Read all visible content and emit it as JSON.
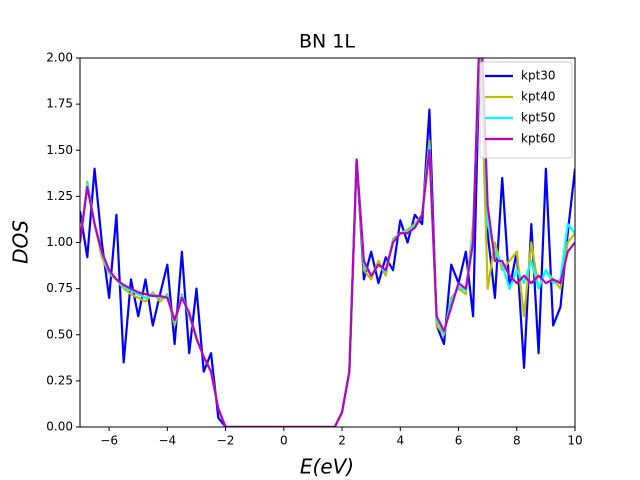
{
  "chart_data": {
    "type": "line",
    "title": "BN 1L",
    "x_label": "E(eV)",
    "y_label": "DOS",
    "x": [
      -7,
      -6.75,
      -6.5,
      -6.25,
      -6,
      -5.75,
      -5.5,
      -5.25,
      -5,
      -4.75,
      -4.5,
      -4.25,
      -4,
      -3.75,
      -3.5,
      -3.25,
      -3,
      -2.75,
      -2.5,
      -2.25,
      -2,
      -1.75,
      -1.5,
      -1.25,
      -1,
      -0.75,
      -0.5,
      -0.25,
      0,
      0.25,
      0.5,
      0.75,
      1,
      1.25,
      1.5,
      1.75,
      2,
      2.25,
      2.5,
      2.75,
      3,
      3.25,
      3.5,
      3.75,
      4,
      4.25,
      4.5,
      4.75,
      5,
      5.25,
      5.5,
      5.75,
      6,
      6.25,
      6.5,
      6.75,
      7,
      7.25,
      7.5,
      7.75,
      8,
      8.25,
      8.5,
      8.75,
      9,
      9.25,
      9.5,
      9.75,
      10
    ],
    "series": [
      {
        "name": "kpt30",
        "color": "#0000ff",
        "values": [
          1.17,
          0.92,
          1.4,
          1.0,
          0.7,
          1.15,
          0.35,
          0.8,
          0.6,
          0.8,
          0.55,
          0.72,
          0.88,
          0.45,
          0.95,
          0.4,
          0.75,
          0.3,
          0.4,
          0.05,
          0,
          0,
          0,
          0,
          0,
          0,
          0,
          0,
          0,
          0,
          0,
          0,
          0,
          0,
          0,
          0,
          0.08,
          0.3,
          1.45,
          0.8,
          0.95,
          0.78,
          0.92,
          0.85,
          1.12,
          1.0,
          1.15,
          1.1,
          1.72,
          0.55,
          0.45,
          0.88,
          0.78,
          0.95,
          0.6,
          2.2,
          1.05,
          0.7,
          1.35,
          0.75,
          0.95,
          0.32,
          1.1,
          0.4,
          1.4,
          0.55,
          0.65,
          1.05,
          1.4
        ]
      },
      {
        "name": "kpt40",
        "color": "#bfbf00",
        "values": [
          1.0,
          1.33,
          1.1,
          0.92,
          0.83,
          0.8,
          0.75,
          0.72,
          0.7,
          0.68,
          0.73,
          0.68,
          0.72,
          0.55,
          0.72,
          0.6,
          0.48,
          0.38,
          0.3,
          0.1,
          0,
          0,
          0,
          0,
          0,
          0,
          0,
          0,
          0,
          0,
          0,
          0,
          0,
          0,
          0,
          0,
          0.08,
          0.3,
          1.45,
          0.85,
          0.8,
          0.9,
          0.82,
          1.02,
          1.05,
          1.07,
          1.1,
          1.15,
          1.55,
          0.55,
          0.5,
          0.7,
          0.75,
          0.72,
          1.1,
          2.1,
          0.75,
          1.0,
          0.85,
          0.9,
          0.95,
          0.6,
          1.0,
          0.75,
          0.85,
          0.8,
          0.75,
          1.0,
          1.05
        ]
      },
      {
        "name": "kpt50",
        "color": "#00ffff",
        "values": [
          1.0,
          1.32,
          1.1,
          0.94,
          0.84,
          0.8,
          0.76,
          0.74,
          0.72,
          0.7,
          0.72,
          0.7,
          0.71,
          0.57,
          0.71,
          0.61,
          0.48,
          0.38,
          0.3,
          0.1,
          0,
          0,
          0,
          0,
          0,
          0,
          0,
          0,
          0,
          0,
          0,
          0,
          0,
          0,
          0,
          0,
          0.08,
          0.3,
          1.45,
          0.88,
          0.82,
          0.88,
          0.84,
          1.01,
          1.05,
          1.06,
          1.09,
          1.15,
          1.52,
          0.58,
          0.51,
          0.68,
          0.76,
          0.74,
          1.05,
          2.2,
          1.1,
          0.95,
          0.88,
          0.75,
          0.85,
          0.78,
          0.9,
          0.75,
          0.85,
          0.78,
          0.8,
          1.1,
          1.05
        ]
      },
      {
        "name": "kpt60",
        "color": "#bf00bf",
        "values": [
          1.0,
          1.3,
          1.1,
          0.95,
          0.85,
          0.8,
          0.77,
          0.75,
          0.73,
          0.72,
          0.71,
          0.71,
          0.7,
          0.58,
          0.7,
          0.62,
          0.48,
          0.38,
          0.3,
          0.1,
          0,
          0,
          0,
          0,
          0,
          0,
          0,
          0,
          0,
          0,
          0,
          0,
          0,
          0,
          0,
          0,
          0.08,
          0.3,
          1.45,
          0.9,
          0.82,
          0.88,
          0.85,
          1.0,
          1.05,
          1.05,
          1.08,
          1.15,
          1.5,
          0.6,
          0.52,
          0.65,
          0.78,
          0.75,
          1.0,
          2.3,
          1.2,
          0.9,
          0.9,
          0.82,
          0.78,
          0.82,
          0.78,
          0.82,
          0.78,
          0.8,
          0.78,
          0.95,
          1.0
        ]
      }
    ],
    "xlim": [
      -7,
      10
    ],
    "xticks": [
      {
        "value": -6,
        "label": "−6"
      },
      {
        "value": -4,
        "label": "−4"
      },
      {
        "value": -2,
        "label": "−2"
      },
      0,
      2,
      4,
      6,
      8,
      10
    ],
    "ylim": [
      0,
      2
    ],
    "yticks": [
      {
        "value": 0,
        "label": "0.00"
      },
      {
        "value": 0.25,
        "label": "0.25"
      },
      {
        "value": 0.5,
        "label": "0.50"
      },
      {
        "value": 0.75,
        "label": "0.75"
      },
      {
        "value": 1,
        "label": "1.00"
      },
      {
        "value": 1.25,
        "label": "1.25"
      },
      {
        "value": 1.5,
        "label": "1.50"
      },
      {
        "value": 1.75,
        "label": "1.75"
      },
      {
        "value": 2,
        "label": "2.00"
      }
    ],
    "legend": "upper right",
    "grid": false
  }
}
